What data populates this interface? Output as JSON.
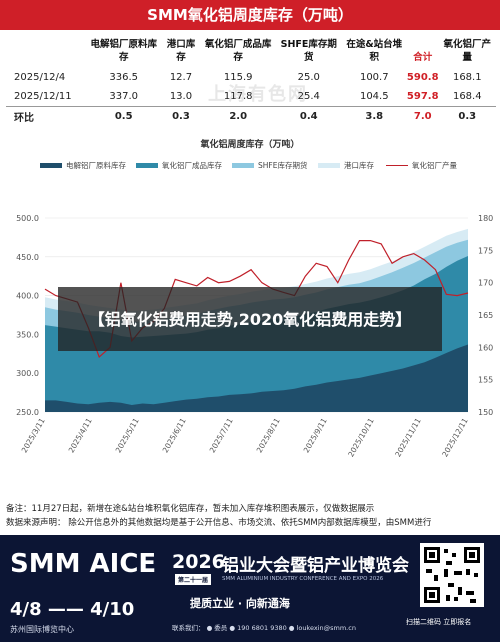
{
  "header": {
    "title": "SMM氧化铝周度库存（万吨）"
  },
  "table": {
    "columns": [
      "",
      "电解铝厂原料库存",
      "港口库存",
      "氧化铝厂成品库存",
      "SHFE库存期货",
      "在途&站台堆积",
      "合计",
      "氧化铝厂产量"
    ],
    "rows": [
      {
        "label": "2025/12/4",
        "values": [
          "336.5",
          "12.7",
          "115.9",
          "25.0",
          "100.7",
          "590.8",
          "168.1"
        ]
      },
      {
        "label": "2025/12/11",
        "values": [
          "337.0",
          "13.0",
          "117.8",
          "25.4",
          "104.5",
          "597.8",
          "168.4"
        ]
      },
      {
        "label": "环比",
        "values": [
          "0.5",
          "0.3",
          "2.0",
          "0.4",
          "3.8",
          "7.0",
          "0.3"
        ]
      }
    ]
  },
  "watermark": {
    "text": "上海有色网"
  },
  "chart_data": {
    "type": "area",
    "title": "氧化铝周度库存（万吨）",
    "x": [
      "2025/3/11",
      "2025/3/18",
      "2025/3/25",
      "2025/4/1",
      "2025/4/8",
      "2025/4/15",
      "2025/4/22",
      "2025/4/29",
      "2025/5/6",
      "2025/5/13",
      "2025/5/20",
      "2025/5/27",
      "2025/6/3",
      "2025/6/10",
      "2025/6/17",
      "2025/6/24",
      "2025/7/1",
      "2025/7/8",
      "2025/7/15",
      "2025/7/22",
      "2025/7/29",
      "2025/8/5",
      "2025/8/12",
      "2025/8/19",
      "2025/8/26",
      "2025/9/2",
      "2025/9/9",
      "2025/9/16",
      "2025/9/23",
      "2025/9/30",
      "2025/10/7",
      "2025/10/14",
      "2025/10/21",
      "2025/10/28",
      "2025/11/4",
      "2025/11/11",
      "2025/11/18",
      "2025/11/25",
      "2025/12/2",
      "2025/12/11"
    ],
    "xticks": [
      "2025/3/11",
      "2025/4/11",
      "2025/5/11",
      "2025/6/11",
      "2025/7/11",
      "2025/8/11",
      "2025/9/11",
      "2025/10/11",
      "2025/11/11",
      "2025/12/11"
    ],
    "ylim": [
      250,
      500
    ],
    "yticks": [
      "250.0",
      "300.0",
      "350.0",
      "400.0",
      "450.0",
      "500.0"
    ],
    "y2lim": [
      150,
      180
    ],
    "y2ticks": [
      "150",
      "155",
      "160",
      "165",
      "170",
      "175",
      "180"
    ],
    "legend_position": "top",
    "series": [
      {
        "name": "电解铝厂原料库存",
        "kind": "area",
        "color": "#1f4e6b",
        "values": [
          265,
          265,
          263,
          261,
          260,
          262,
          263,
          262,
          259,
          261,
          260,
          262,
          264,
          266,
          267,
          269,
          270,
          272,
          273,
          274,
          276,
          277,
          278,
          280,
          283,
          285,
          288,
          290,
          292,
          294,
          297,
          300,
          303,
          306,
          310,
          314,
          320,
          326,
          332,
          337
        ]
      },
      {
        "name": "氧化铝厂成品库存",
        "kind": "area",
        "color": "#2f8aa8",
        "values": [
          362,
          360,
          358,
          356,
          354,
          354,
          352,
          348,
          346,
          347,
          348,
          349,
          350,
          351,
          353,
          356,
          358,
          361,
          363,
          366,
          368,
          370,
          371,
          373,
          376,
          379,
          383,
          386,
          389,
          391,
          394,
          398,
          402,
          407,
          413,
          421,
          428,
          437,
          445,
          451
        ]
      },
      {
        "name": "SHFE库存期货",
        "kind": "area",
        "color": "#8dc8e0",
        "values": [
          385,
          382,
          380,
          378,
          375,
          373,
          371,
          368,
          366,
          367,
          368,
          370,
          372,
          374,
          376,
          380,
          383,
          386,
          388,
          391,
          393,
          395,
          396,
          398,
          401,
          404,
          408,
          411,
          414,
          416,
          420,
          425,
          430,
          436,
          442,
          449,
          456,
          463,
          468,
          472
        ]
      },
      {
        "name": "港口库存",
        "kind": "area",
        "color": "#d7ebf4",
        "values": [
          398,
          395,
          393,
          391,
          388,
          386,
          384,
          382,
          380,
          381,
          382,
          384,
          386,
          388,
          390,
          394,
          397,
          400,
          402,
          405,
          407,
          409,
          410,
          412,
          415,
          418,
          422,
          425,
          428,
          430,
          434,
          439,
          444,
          450,
          456,
          463,
          470,
          477,
          482,
          486
        ]
      },
      {
        "name": "氧化铝厂产量",
        "kind": "line",
        "axis": "right",
        "color": "#c0202a",
        "values": [
          169,
          168,
          167.5,
          167,
          163,
          158.5,
          160,
          170,
          161,
          163,
          164,
          166,
          170.5,
          170,
          169.5,
          170.8,
          170,
          170.2,
          171,
          172,
          170,
          169,
          168.5,
          168,
          171,
          173,
          172.5,
          170,
          173.5,
          176.5,
          176.5,
          176,
          173,
          174,
          174.5,
          173.5,
          172,
          168.2,
          168,
          168.4
        ]
      }
    ]
  },
  "overlay": {
    "text": "【铝氧化铝费用走势,2020氧化铝费用走势】"
  },
  "notes": {
    "line1": "备注：11月27日起，新增在途&站台堆积氧化铝库存，暂未加入库存堆积图表展示，仅做数据展示",
    "line2": "数据来源声明：  除公开信息外的其他数据均是基于公开信息、市场交流、依托SMM内部数据库模型，由SMM进行"
  },
  "banner": {
    "brand": "SMM AICE",
    "year": "2026",
    "session": "第二十一届",
    "title_cn": "铝业大会暨铝产业博览会",
    "title_en": "SMM ALUMINIUM INDUSTRY CONFERENCE AND EXPO 2026",
    "dates": "4/8 —— 4/10",
    "venue": "苏州国际博览中心",
    "slogan": "提质立业 · 向新通海",
    "contact": "联系我们：  ● 委员  ● 190 6801 9380  ● loukexin@smm.cn",
    "qr_caption": "扫描二维码 立即报名"
  }
}
